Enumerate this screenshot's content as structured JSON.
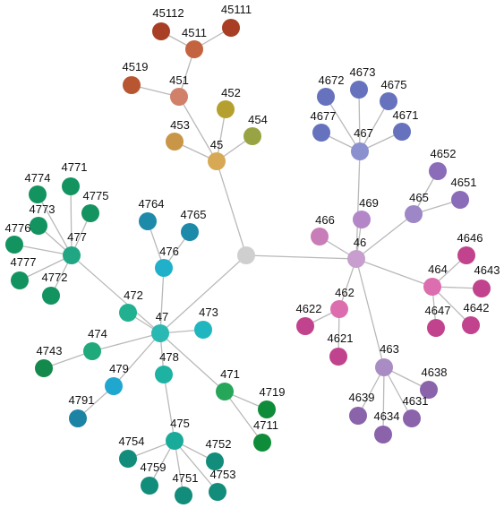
{
  "root": {
    "id": "root",
    "label": "",
    "color": "#cfcfcf"
  },
  "nodes": [
    {
      "id": "45",
      "label": "45",
      "parent": "root",
      "color": "#d7a955"
    },
    {
      "id": "451",
      "label": "451",
      "parent": "45",
      "color": "#d1806a"
    },
    {
      "id": "4511",
      "label": "4511",
      "parent": "451",
      "color": "#c4633f"
    },
    {
      "id": "45112",
      "label": "45112",
      "parent": "4511",
      "color": "#a83f24"
    },
    {
      "id": "45111",
      "label": "45111",
      "parent": "4511",
      "color": "#a83f24"
    },
    {
      "id": "4519",
      "label": "4519",
      "parent": "451",
      "color": "#b95632"
    },
    {
      "id": "452",
      "label": "452",
      "parent": "45",
      "color": "#b5a02f"
    },
    {
      "id": "453",
      "label": "453",
      "parent": "45",
      "color": "#c89646"
    },
    {
      "id": "454",
      "label": "454",
      "parent": "45",
      "color": "#98a443"
    },
    {
      "id": "46",
      "label": "46",
      "parent": "root",
      "color": "#c79ecd"
    },
    {
      "id": "467",
      "label": "467",
      "parent": "46",
      "color": "#8b90cf"
    },
    {
      "id": "4672",
      "label": "4672",
      "parent": "467",
      "color": "#6672bd"
    },
    {
      "id": "4673",
      "label": "4673",
      "parent": "467",
      "color": "#6672bd"
    },
    {
      "id": "4675",
      "label": "4675",
      "parent": "467",
      "color": "#6672bd"
    },
    {
      "id": "4677",
      "label": "4677",
      "parent": "467",
      "color": "#6672bd"
    },
    {
      "id": "4671",
      "label": "4671",
      "parent": "467",
      "color": "#6672bd"
    },
    {
      "id": "469",
      "label": "469",
      "parent": "46",
      "color": "#b386c7"
    },
    {
      "id": "466",
      "label": "466",
      "parent": "46",
      "color": "#c97db8"
    },
    {
      "id": "465",
      "label": "465",
      "parent": "46",
      "color": "#9d87c6"
    },
    {
      "id": "4652",
      "label": "4652",
      "parent": "465",
      "color": "#8a6cb8"
    },
    {
      "id": "4651",
      "label": "4651",
      "parent": "465",
      "color": "#8a6cb8"
    },
    {
      "id": "464",
      "label": "464",
      "parent": "46",
      "color": "#dc6eaf"
    },
    {
      "id": "4646",
      "label": "4646",
      "parent": "464",
      "color": "#c1438e"
    },
    {
      "id": "4643",
      "label": "4643",
      "parent": "464",
      "color": "#c1438e"
    },
    {
      "id": "4647",
      "label": "4647",
      "parent": "464",
      "color": "#c1438e"
    },
    {
      "id": "4642",
      "label": "4642",
      "parent": "464",
      "color": "#c1438e"
    },
    {
      "id": "462",
      "label": "462",
      "parent": "46",
      "color": "#dc6eaf"
    },
    {
      "id": "4622",
      "label": "4622",
      "parent": "462",
      "color": "#c1438e"
    },
    {
      "id": "4621",
      "label": "4621",
      "parent": "462",
      "color": "#c1438e"
    },
    {
      "id": "463",
      "label": "463",
      "parent": "46",
      "color": "#a98cc4"
    },
    {
      "id": "4638",
      "label": "4638",
      "parent": "463",
      "color": "#8a63ab"
    },
    {
      "id": "4639",
      "label": "4639",
      "parent": "463",
      "color": "#8a63ab"
    },
    {
      "id": "4631",
      "label": "4631",
      "parent": "463",
      "color": "#8a63ab"
    },
    {
      "id": "4634",
      "label": "4634",
      "parent": "463",
      "color": "#8a63ab"
    },
    {
      "id": "47",
      "label": "47",
      "parent": "root",
      "color": "#2ab8b3"
    },
    {
      "id": "477",
      "label": "477",
      "parent": "47",
      "color": "#21a683"
    },
    {
      "id": "4774",
      "label": "4774",
      "parent": "477",
      "color": "#13935f"
    },
    {
      "id": "4771",
      "label": "4771",
      "parent": "477",
      "color": "#13935f"
    },
    {
      "id": "4775",
      "label": "4775",
      "parent": "477",
      "color": "#13935f"
    },
    {
      "id": "4773",
      "label": "4773",
      "parent": "477",
      "color": "#13935f"
    },
    {
      "id": "4776",
      "label": "4776",
      "parent": "477",
      "color": "#13935f"
    },
    {
      "id": "4777",
      "label": "4777",
      "parent": "477",
      "color": "#13935f"
    },
    {
      "id": "4772",
      "label": "4772",
      "parent": "477",
      "color": "#13935f"
    },
    {
      "id": "476",
      "label": "476",
      "parent": "47",
      "color": "#20b0c9"
    },
    {
      "id": "4764",
      "label": "4764",
      "parent": "476",
      "color": "#1c8aa8"
    },
    {
      "id": "4765",
      "label": "4765",
      "parent": "476",
      "color": "#1c8aa8"
    },
    {
      "id": "472",
      "label": "472",
      "parent": "47",
      "color": "#22b190"
    },
    {
      "id": "473",
      "label": "473",
      "parent": "47",
      "color": "#1fb6c0"
    },
    {
      "id": "474",
      "label": "474",
      "parent": "47",
      "color": "#20a97a"
    },
    {
      "id": "4743",
      "label": "4743",
      "parent": "474",
      "color": "#138a4c"
    },
    {
      "id": "479",
      "label": "479",
      "parent": "47",
      "color": "#20a7cf"
    },
    {
      "id": "4791",
      "label": "4791",
      "parent": "479",
      "color": "#1c83a5"
    },
    {
      "id": "478",
      "label": "478",
      "parent": "47",
      "color": "#1eb2a3"
    },
    {
      "id": "475",
      "label": "475",
      "parent": "478",
      "color": "#1aaa9a"
    },
    {
      "id": "4754",
      "label": "4754",
      "parent": "475",
      "color": "#128c7b"
    },
    {
      "id": "4759",
      "label": "4759",
      "parent": "475",
      "color": "#128c7b"
    },
    {
      "id": "4751",
      "label": "4751",
      "parent": "475",
      "color": "#128c7b"
    },
    {
      "id": "4752",
      "label": "4752",
      "parent": "475",
      "color": "#128c7b"
    },
    {
      "id": "4753",
      "label": "4753",
      "parent": "475",
      "color": "#128c7b"
    },
    {
      "id": "471",
      "label": "471",
      "parent": "47",
      "color": "#26a659"
    },
    {
      "id": "4719",
      "label": "4719",
      "parent": "471",
      "color": "#0f8c39"
    },
    {
      "id": "4711",
      "label": "4711",
      "parent": "471",
      "color": "#0f8c39"
    }
  ]
}
